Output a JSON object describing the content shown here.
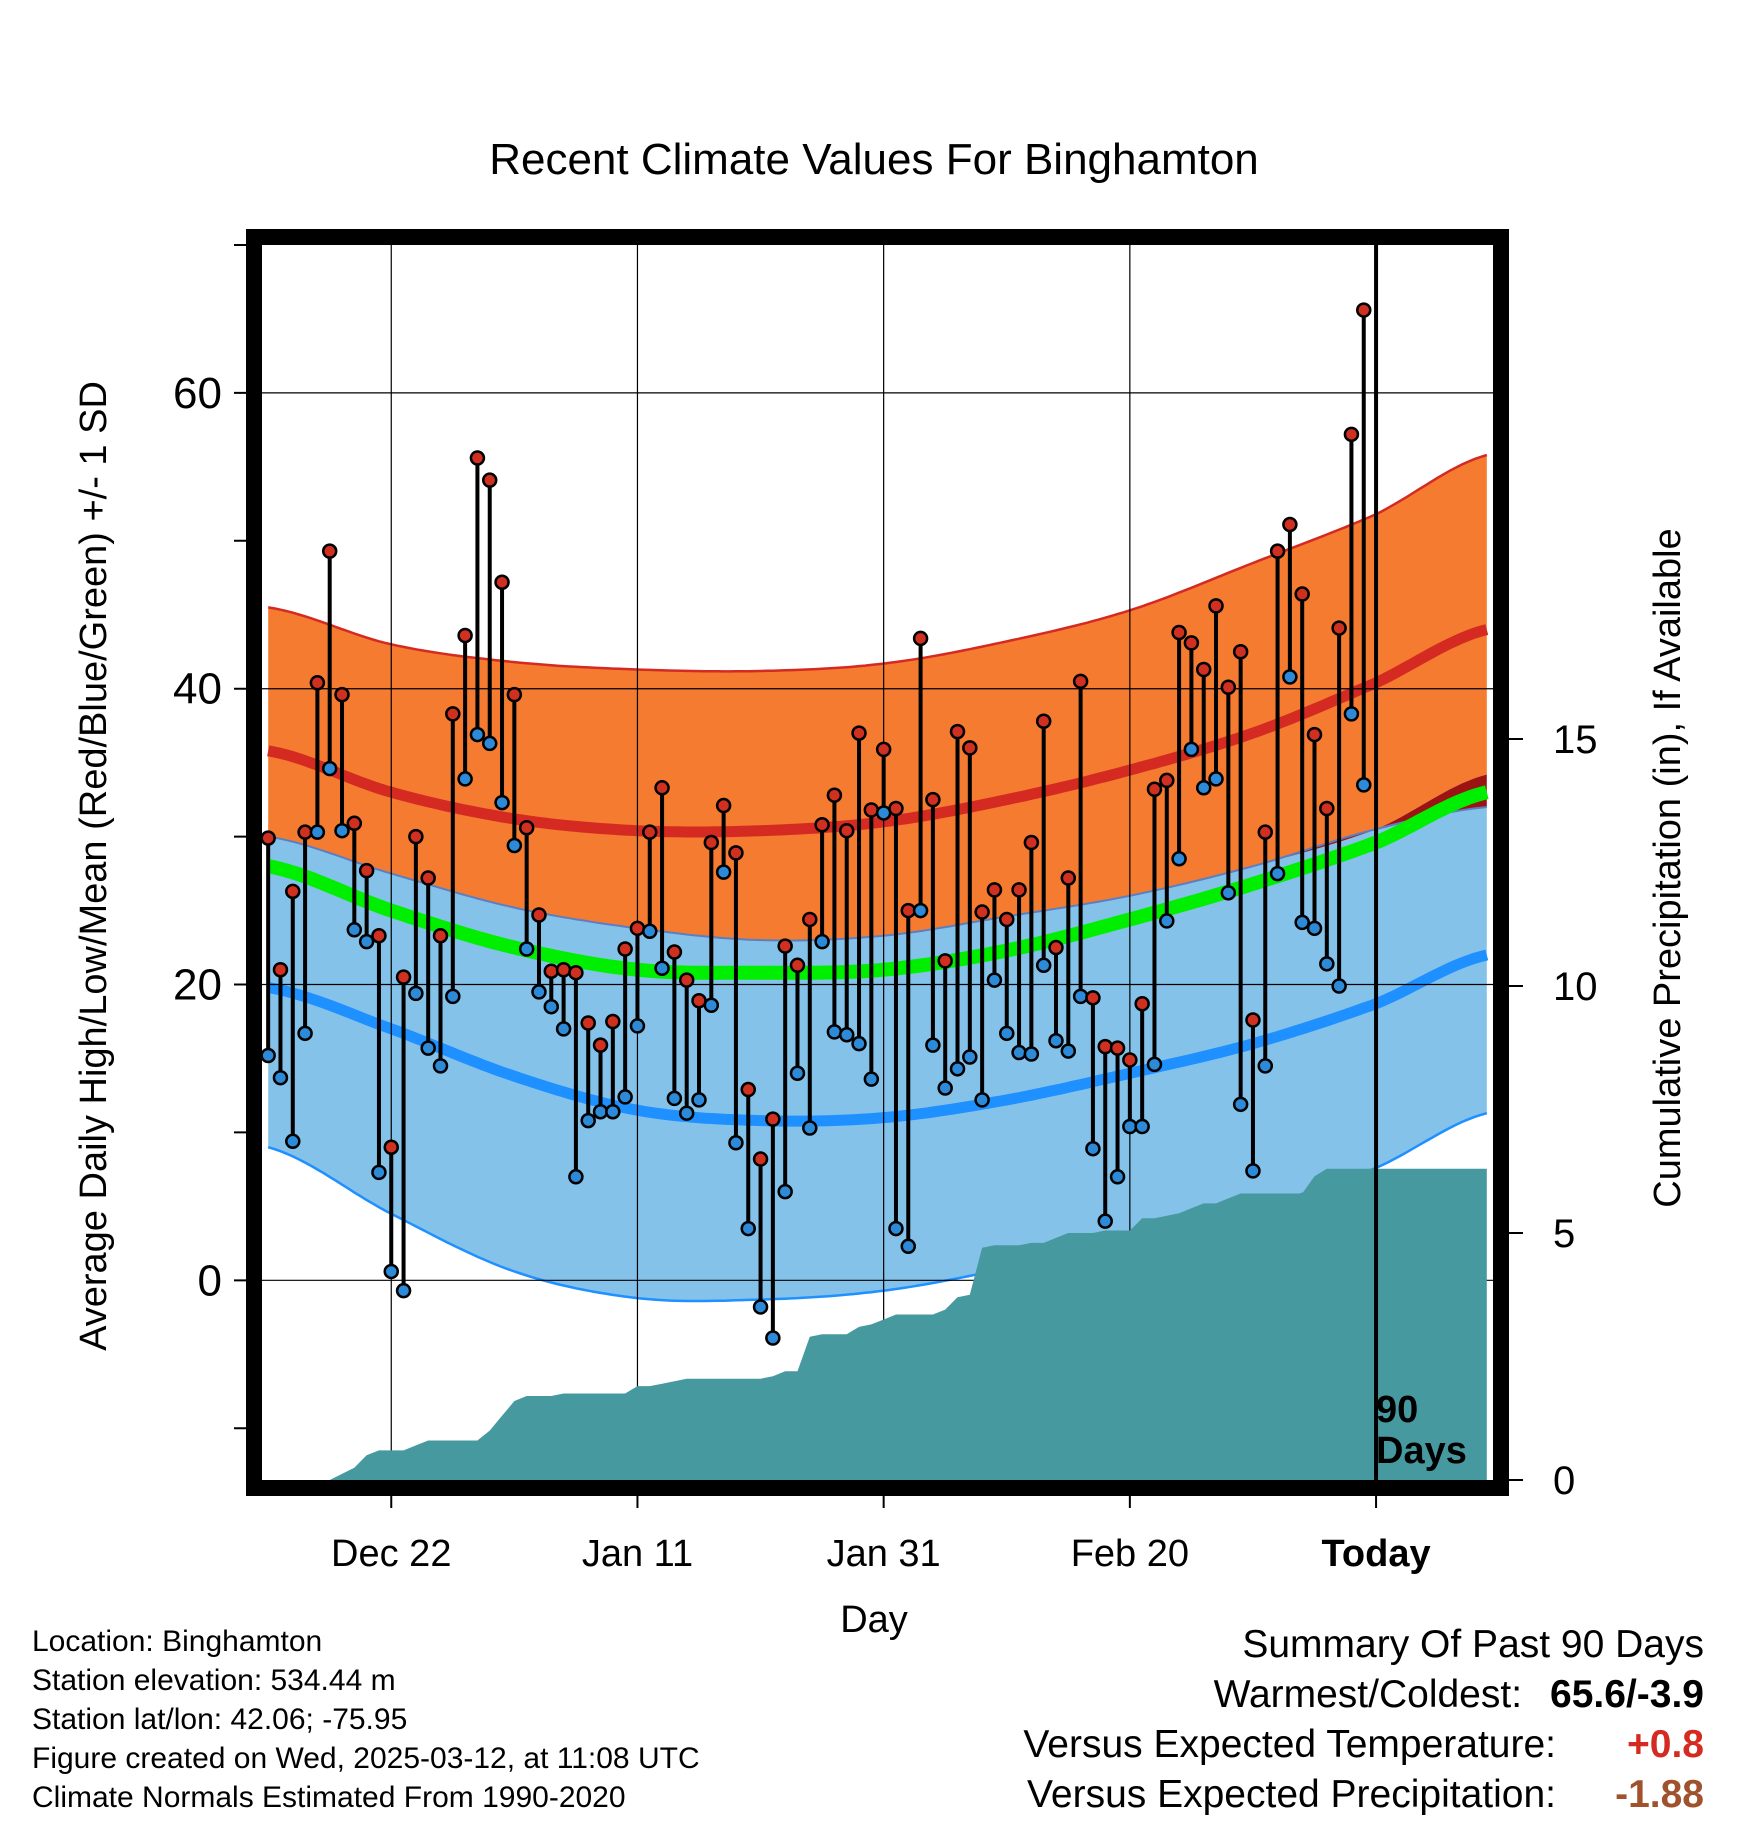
{
  "chart_data": {
    "type": "line",
    "title": "Recent Climate Values For Binghamton",
    "xlabel": "Day",
    "ylabel": "Average Daily High/Low/Mean (Red/Blue/Green) +/- 1 SD",
    "y2label": "Cumulative Precipitation (in), If Available",
    "ylim": [
      -13.5,
      70
    ],
    "yticks": [
      0,
      20,
      40,
      60
    ],
    "y2lim": [
      0,
      25
    ],
    "y2ticks": [
      0,
      5,
      10,
      15
    ],
    "xlim": [
      -2.5,
      97.5
    ],
    "x_tick_positions": [
      8,
      28,
      48,
      68,
      88
    ],
    "x_tick_labels": [
      "Dec 22",
      "Jan 11",
      "Jan 31",
      "Feb 20",
      "Today"
    ],
    "grid": true,
    "today_marker": {
      "label_line1": "90",
      "label_line2": "Days"
    },
    "normals": {
      "x": [
        -2,
        8,
        18,
        28,
        38,
        48,
        58,
        68,
        78,
        88,
        97
      ],
      "high_mean": [
        35.8,
        33.0,
        31.2,
        30.4,
        30.4,
        31.0,
        32.5,
        34.5,
        37.0,
        40.4,
        44.0
      ],
      "high_plus_sd": [
        45.5,
        43.0,
        41.8,
        41.3,
        41.2,
        41.7,
        43.2,
        45.3,
        48.5,
        51.8,
        55.8
      ],
      "high_minus_sd": [
        30.0,
        27.5,
        25.2,
        23.8,
        23.0,
        23.3,
        24.6,
        26.0,
        28.0,
        30.5,
        34.2
      ],
      "low_mean": [
        19.8,
        17.0,
        13.8,
        11.5,
        10.8,
        11.0,
        12.2,
        14.0,
        16.0,
        18.7,
        22.0
      ],
      "low_plus_sd": [
        30.0,
        27.5,
        25.2,
        23.8,
        23.0,
        23.3,
        24.6,
        26.0,
        28.0,
        30.5,
        32.0
      ],
      "low_minus_sd": [
        9.0,
        4.5,
        0.6,
        -1.2,
        -1.3,
        -0.7,
        0.8,
        2.6,
        4.8,
        7.6,
        11.3
      ],
      "mean": [
        28.0,
        25.0,
        22.5,
        21.0,
        20.8,
        21.0,
        22.3,
        24.4,
        26.8,
        29.6,
        33.0
      ]
    },
    "series": [
      {
        "name": "High",
        "values": [
          29.9,
          21.0,
          26.3,
          30.3,
          40.4,
          49.3,
          39.6,
          30.9,
          27.7,
          23.3,
          9.0,
          20.5,
          30.0,
          27.2,
          23.3,
          38.3,
          43.6,
          55.6,
          54.1,
          47.2,
          39.6,
          30.6,
          24.7,
          20.9,
          21.0,
          20.8,
          17.4,
          15.9,
          17.5,
          22.4,
          23.8,
          30.3,
          33.3,
          22.2,
          20.3,
          18.9,
          29.6,
          32.1,
          28.9,
          12.9,
          8.2,
          10.9,
          22.6,
          21.3,
          24.4,
          30.8,
          32.8,
          30.4,
          37.0,
          31.8,
          35.9,
          31.9,
          25.0,
          43.4,
          32.5,
          21.6,
          37.1,
          36.0,
          24.9,
          26.4,
          24.4,
          26.4,
          29.6,
          37.8,
          22.5,
          27.2,
          40.5,
          19.1,
          15.8,
          15.7,
          14.9,
          18.7,
          33.2,
          33.8,
          43.8,
          43.1,
          41.3,
          45.6,
          40.1,
          42.5,
          17.6,
          30.3,
          49.3,
          51.1,
          46.4,
          36.9,
          31.9,
          44.1,
          57.2,
          65.6
        ]
      },
      {
        "name": "Low",
        "values": [
          15.2,
          13.7,
          9.4,
          16.7,
          30.3,
          34.6,
          30.4,
          23.7,
          22.9,
          7.3,
          0.6,
          -0.7,
          19.4,
          15.7,
          14.5,
          19.2,
          33.9,
          36.9,
          36.3,
          32.3,
          29.4,
          22.4,
          19.5,
          18.5,
          17.0,
          7.0,
          10.8,
          11.4,
          11.4,
          12.4,
          17.2,
          23.6,
          21.1,
          12.3,
          11.3,
          12.2,
          18.6,
          27.6,
          9.3,
          3.5,
          -1.8,
          -3.9,
          6.0,
          14.0,
          10.3,
          22.9,
          16.8,
          16.6,
          16.0,
          13.6,
          31.6,
          3.5,
          2.3,
          25.0,
          15.9,
          13.0,
          14.3,
          15.1,
          12.2,
          20.3,
          16.7,
          15.4,
          15.3,
          21.3,
          16.2,
          15.5,
          19.2,
          8.9,
          4.0,
          7.0,
          10.4,
          10.4,
          14.6,
          24.3,
          28.5,
          35.9,
          33.3,
          33.9,
          26.2,
          11.9,
          7.4,
          14.5,
          27.5,
          40.8,
          24.2,
          23.8,
          21.4,
          19.9,
          38.3,
          33.5
        ]
      }
    ],
    "precip_cumulative": {
      "x": [
        3,
        5,
        6,
        7,
        8,
        9,
        10,
        11,
        12,
        13,
        14,
        15,
        16,
        17,
        18,
        19,
        20,
        21,
        22,
        23,
        24,
        25,
        26,
        27,
        28,
        29,
        30,
        31,
        32,
        33,
        34,
        35,
        36,
        37,
        38,
        39,
        40,
        41,
        42,
        43,
        44,
        45,
        46,
        47,
        48,
        49,
        50,
        51,
        52,
        53,
        54,
        55,
        56,
        57,
        58,
        59,
        60,
        61,
        62,
        63,
        64,
        65,
        66,
        67,
        68,
        69,
        70,
        71,
        72,
        73,
        74,
        75,
        76,
        77,
        78,
        79,
        80,
        81,
        82,
        83,
        84,
        85,
        86,
        87,
        88,
        89,
        90,
        91,
        92,
        93,
        94,
        95,
        96,
        97
      ],
      "values": [
        0,
        0.25,
        0.5,
        0.6,
        0.6,
        0.6,
        0.7,
        0.8,
        0.8,
        0.8,
        0.8,
        0.8,
        1.0,
        1.3,
        1.6,
        1.7,
        1.7,
        1.7,
        1.75,
        1.75,
        1.75,
        1.75,
        1.75,
        1.75,
        1.9,
        1.9,
        1.95,
        2.0,
        2.05,
        2.05,
        2.05,
        2.05,
        2.05,
        2.05,
        2.05,
        2.1,
        2.2,
        2.2,
        2.9,
        2.95,
        2.95,
        2.95,
        3.1,
        3.15,
        3.25,
        3.35,
        3.35,
        3.35,
        3.35,
        3.45,
        3.7,
        3.75,
        4.7,
        4.75,
        4.75,
        4.75,
        4.8,
        4.8,
        4.9,
        5.0,
        5.0,
        5.0,
        5.05,
        5.05,
        5.05,
        5.3,
        5.3,
        5.35,
        5.4,
        5.5,
        5.6,
        5.6,
        5.7,
        5.8,
        5.8,
        5.8,
        5.8,
        5.8,
        5.8,
        6.15,
        6.3,
        6.3,
        6.3,
        6.3,
        6.3,
        6.3,
        6.3,
        6.3,
        6.3,
        6.3,
        6.3,
        6.3,
        6.3,
        6.3
      ]
    }
  },
  "footer": {
    "location": "Location: Binghamton",
    "elevation": "Station elevation: 534.44 m",
    "latlon": "Station lat/lon: 42.06; -75.95",
    "created": "Figure created on Wed, 2025-03-12, at 11:08 UTC",
    "normals_note": "Climate Normals Estimated From 1990-2020"
  },
  "summary": {
    "heading": "Summary Of Past 90 Days",
    "warmest_label": "Warmest/Coldest:",
    "warmest_value": "65.6/-3.9",
    "temp_label": "Versus Expected Temperature:",
    "temp_value": "+0.8",
    "precip_label": "Versus Expected Precipitation:",
    "precip_value": "-1.88"
  },
  "colors": {
    "high_band": "#f47b30",
    "high_line": "#d42a22",
    "overlap_band": "#9b1313",
    "low_band": "#85c2ea",
    "low_line": "#1e90ff",
    "mean_line": "#00ee00",
    "precip_fill": "#4799a0",
    "high_dot": "#d03020",
    "low_dot": "#2d8ad8",
    "warm_text": "#d42a22",
    "dry_text": "#a0522d"
  }
}
